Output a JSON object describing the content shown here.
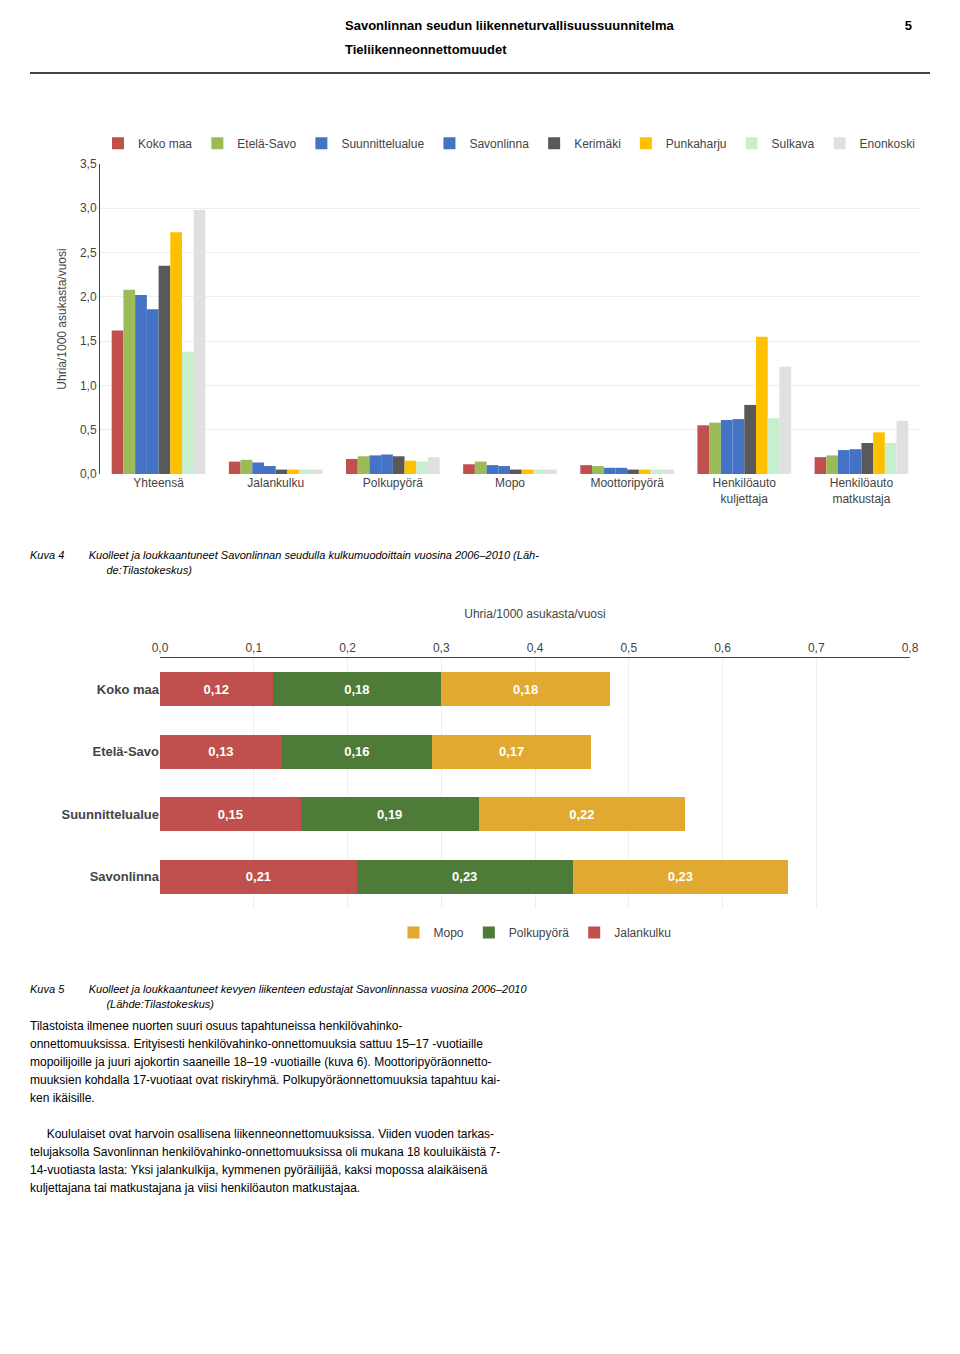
{
  "chart_data": [
    {
      "type": "bar",
      "annotations": [
        "Savonlinnan seudun liikenneturvallisuussuunnitelma",
        "5",
        "Tieliikenneonnettomuudet",
        "Kuva 4        Kuolleet ja loukkaantuneet Savonlinnan seudulla kulkumuodoittain vuosina 2006–2010 (Läh-\n                         de:Tilastokeskus)"
      ],
      "categories": [
        "Yhteensä",
        "Jalankulku",
        "Polkupyörä",
        "Mopo",
        "Moottoripyörä",
        "Henkilöauto\nkuljettaja",
        "Henkilöauto\nmatkustaja"
      ],
      "series": [
        {
          "name": "Koko maa",
          "color": "#C0504D",
          "values": [
            1.62,
            0.14,
            0.17,
            0.11,
            0.1,
            0.55,
            0.19
          ]
        },
        {
          "name": "Etelä-Savo",
          "color": "#9BBB59",
          "values": [
            2.08,
            0.16,
            0.2,
            0.14,
            0.09,
            0.58,
            0.21
          ]
        },
        {
          "name": "Suunnittelualue",
          "color": "#4472C4",
          "values": [
            2.02,
            0.13,
            0.21,
            0.1,
            0.07,
            0.61,
            0.27
          ]
        },
        {
          "name": "Savonlinna",
          "color": "#4472C4",
          "values": [
            1.86,
            0.09,
            0.22,
            0.09,
            0.07,
            0.62,
            0.28
          ]
        },
        {
          "name": "Kerimäki",
          "color": "#595959",
          "values": [
            2.35,
            0.05,
            0.2,
            0.05,
            0.05,
            0.78,
            0.35
          ]
        },
        {
          "name": "Punkaharju",
          "color": "#FFC000",
          "values": [
            2.73,
            0.05,
            0.15,
            0.05,
            0.05,
            1.55,
            0.47
          ]
        },
        {
          "name": "Sulkava",
          "color": "#C6EFCE",
          "values": [
            1.38,
            0.05,
            0.14,
            0.05,
            0.05,
            0.63,
            0.35
          ]
        },
        {
          "name": "Enonkoski",
          "color": "#E0E0E0",
          "values": [
            2.98,
            0.05,
            0.19,
            0.05,
            0.05,
            1.21,
            0.6
          ]
        }
      ],
      "ylabel": "Uhria/1000 asukasta/vuosi",
      "ylim": [
        0,
        3.5
      ],
      "yticks": [
        {
          "value": 0,
          "label": "0,0"
        },
        {
          "value": 0.5,
          "label": "0,5"
        },
        {
          "value": 1,
          "label": "1,0"
        },
        {
          "value": 1.5,
          "label": "1,5"
        },
        {
          "value": 2,
          "label": "2,0"
        },
        {
          "value": 2.5,
          "label": "2,5"
        },
        {
          "value": 3,
          "label": "3,0"
        },
        {
          "value": 3.5,
          "label": "3,5"
        }
      ],
      "grid": true,
      "legend": "upper right"
    },
    {
      "type": "bar",
      "orientation": "horizontal",
      "stacked": true,
      "data_labels": true,
      "categories": [
        "Koko maa",
        "Etelä-Savo",
        "Suunnittelualue",
        "Savonlinna"
      ],
      "series": [
        {
          "name": "Jalankulku",
          "color": "#C0504D",
          "values": [
            0.12,
            0.13,
            0.15,
            0.21
          ],
          "value_labels": [
            "0,12",
            "0,13",
            "0,15",
            "0,21"
          ]
        },
        {
          "name": "Polkupyörä",
          "color": "#4F7B38",
          "values": [
            0.18,
            0.16,
            0.19,
            0.23
          ],
          "value_labels": [
            "0,18",
            "0,16",
            "0,19",
            "0,23"
          ]
        },
        {
          "name": "Mopo",
          "color": "#E2A930",
          "values": [
            0.18,
            0.17,
            0.22,
            0.23
          ],
          "value_labels": [
            "0,18",
            "0,17",
            "0,22",
            "0,23"
          ]
        }
      ],
      "xlabel": "Uhria/1000 asukasta/vuosi",
      "xlim": [
        0,
        0.8
      ],
      "xticks": [
        {
          "value": 0,
          "label": "0,0"
        },
        {
          "value": 0.1,
          "label": "0,1"
        },
        {
          "value": 0.2,
          "label": "0,2"
        },
        {
          "value": 0.3,
          "label": "0,3"
        },
        {
          "value": 0.4,
          "label": "0,4"
        },
        {
          "value": 0.5,
          "label": "0,5"
        },
        {
          "value": 0.6,
          "label": "0,6"
        },
        {
          "value": 0.7,
          "label": "0,7"
        },
        {
          "value": 0.8,
          "label": "0,8"
        }
      ],
      "grid": true,
      "legend": "lower center",
      "annotations": [
        "Kuva 5        Kuolleet ja loukkaantuneet kevyen liikenteen edustajat Savonlinnassa vuosina 2006–2010\n                         (Lähde:Tilastokeskus)",
        "Tilastoista ilmenee nuorten suuri osuus tapahtuneissa henkilövahinko-\nonnettomuuksissa. Erityisesti henkilövahinko-onnettomuuksia sattuu 15–17 -vuotiaille\nmopoilijoille ja juuri ajokortin saaneille 18–19 -vuotiaille (kuva 6). Moottoripyöräonnetto-\nmuuksien kohdalla 17-vuotiaat ovat riskiryhmä. Polkupyöräonnettomuuksia tapahtuu kai-\nken ikäisille.\n\n     Koululaiset ovat harvoin osallisena liikenneonnettomuuksissa. Viiden vuoden tarkas-\ntelujaksolla Savonlinnan henkilövahinko-onnettomuuksissa oli mukana 18 kouluikäistä 7-\n14-vuotiasta lasta: Yksi jalankulkija, kymmenen pyöräilijää, kaksi mopossa alaikäisenä\nkuljettajana tai matkustajana ja viisi henkilöauton matkustajaa."
      ]
    }
  ]
}
